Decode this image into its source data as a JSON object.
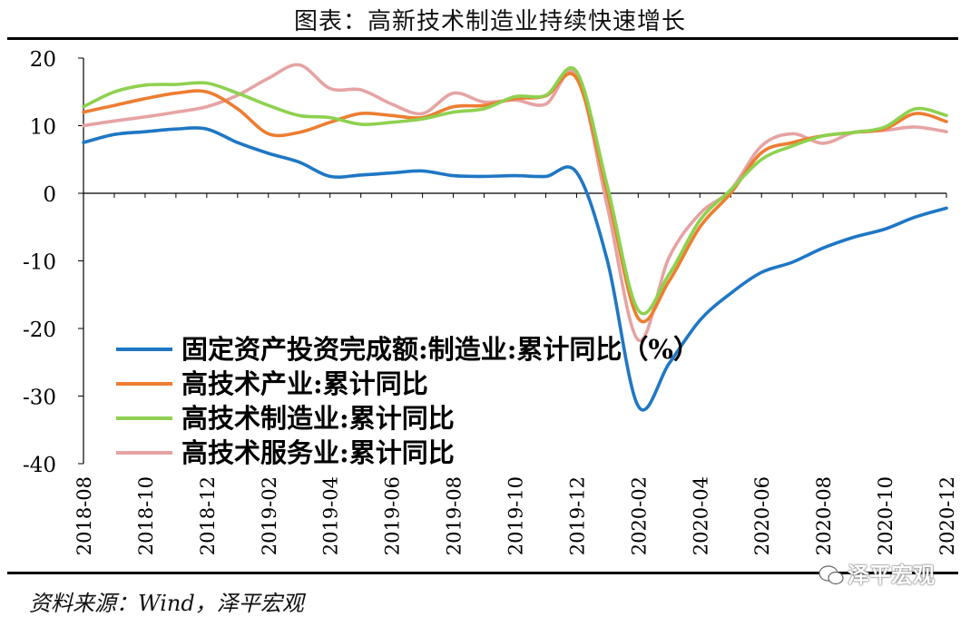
{
  "title": "图表：高新技术制造业持续快速增长",
  "source": "资料来源：Wind，泽平宏观",
  "watermark": "泽平宏观",
  "chart_data": {
    "type": "line",
    "title": "",
    "xlabel": "",
    "ylabel": "",
    "ylim": [
      -40,
      20
    ],
    "yticks": [
      20,
      10,
      0,
      -10,
      -20,
      -30,
      -40
    ],
    "ytick_labels": [
      "20",
      "10",
      "0",
      "-10",
      "-20",
      "-30",
      "-40"
    ],
    "xtick_labels": [
      "2018-08",
      "2018-10",
      "2018-12",
      "2019-02",
      "2019-04",
      "2019-06",
      "2019-08",
      "2019-10",
      "2019-12",
      "2020-02",
      "2020-04",
      "2020-06",
      "2020-08",
      "2020-10",
      "2020-12"
    ],
    "x": [
      "2018-08",
      "2018-09",
      "2018-10",
      "2018-11",
      "2018-12",
      "2019-01",
      "2019-02",
      "2019-03",
      "2019-04",
      "2019-05",
      "2019-06",
      "2019-07",
      "2019-08",
      "2019-09",
      "2019-10",
      "2019-11",
      "2019-12",
      "2020-01",
      "2020-02",
      "2020-03",
      "2020-04",
      "2020-05",
      "2020-06",
      "2020-07",
      "2020-08",
      "2020-09",
      "2020-10",
      "2020-11",
      "2020-12"
    ],
    "grid": false,
    "legend_position": "lower-left",
    "series": [
      {
        "name": "固定资产投资完成额:制造业:累计同比（%）",
        "color": "#1f77c4",
        "values": [
          7.5,
          8.7,
          9.1,
          9.5,
          9.5,
          7.5,
          5.9,
          4.6,
          2.5,
          2.7,
          3.0,
          3.3,
          2.6,
          2.5,
          2.6,
          2.5,
          3.1,
          -10.0,
          -31.5,
          -25.2,
          -18.8,
          -14.8,
          -11.7,
          -10.2,
          -8.1,
          -6.5,
          -5.3,
          -3.5,
          -2.2
        ]
      },
      {
        "name": "高技术产业:累计同比",
        "color": "#ed7d31",
        "values": [
          12.0,
          13.0,
          14.0,
          14.8,
          15.0,
          12.5,
          8.8,
          9.0,
          10.5,
          11.8,
          11.5,
          11.2,
          12.8,
          13.0,
          14.0,
          14.4,
          17.0,
          0.0,
          -18.5,
          -13.0,
          -5.0,
          0.0,
          6.0,
          7.5,
          8.5,
          9.0,
          9.5,
          11.8,
          10.6
        ]
      },
      {
        "name": "高技术制造业:累计同比",
        "color": "#8ed14f",
        "values": [
          12.8,
          15.0,
          16.0,
          16.1,
          16.3,
          14.8,
          13.0,
          11.5,
          11.2,
          10.2,
          10.5,
          11.0,
          12.0,
          12.5,
          14.3,
          14.5,
          18.0,
          1.0,
          -17.3,
          -12.0,
          -4.0,
          0.5,
          5.0,
          7.0,
          8.5,
          9.0,
          9.8,
          12.5,
          11.5
        ]
      },
      {
        "name": "高技术服务业:累计同比",
        "color": "#e6a3a3",
        "values": [
          10.0,
          10.7,
          11.3,
          12.0,
          12.8,
          14.5,
          17.0,
          19.0,
          15.5,
          15.3,
          13.2,
          11.8,
          14.8,
          13.5,
          13.8,
          13.2,
          17.5,
          -2.0,
          -21.7,
          -9.5,
          -3.0,
          0.5,
          7.0,
          8.8,
          7.4,
          9.0,
          9.3,
          9.8,
          9.1
        ]
      }
    ]
  }
}
